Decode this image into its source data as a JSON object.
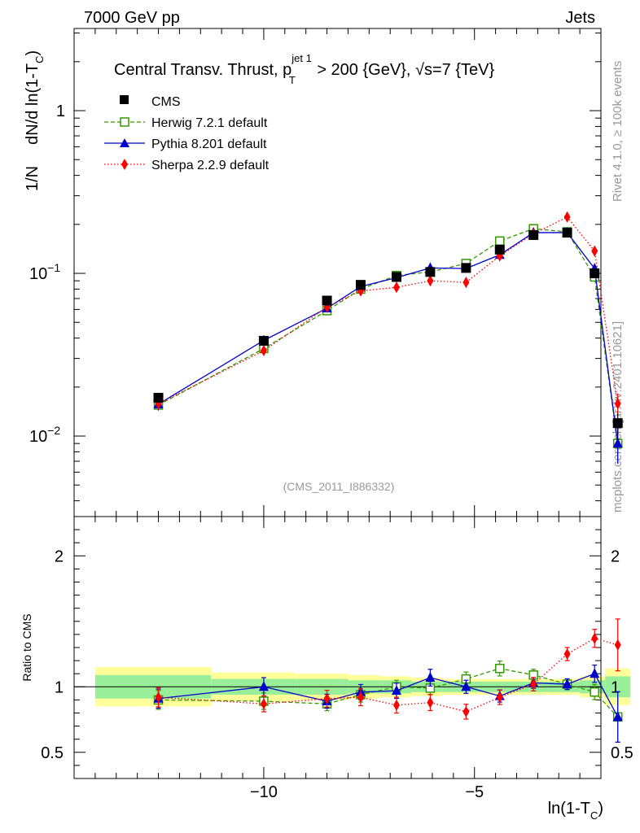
{
  "header": {
    "left": "7000 GeV pp",
    "right": "Jets"
  },
  "side_labels": {
    "rivet": "Rivet 4.1.0, ≥ 100k events",
    "mcplots": "mcplots.cern.ch [arXiv:2401.10621]"
  },
  "chart_data": {
    "type": "line",
    "title": "Central Transv. Thrust, p_T^{jet 1} > 200 {GeV}, √s=7 {TeV}",
    "title_parts": {
      "prefix": "Central Transv. Thrust, p",
      "sup": "jet 1",
      "sub": "T",
      "middle": " > 200 {GeV}, ",
      "sqrt": "√",
      "tail": "s=7 {TeV}"
    },
    "analysis_id": "(CMS_2011_I886332)",
    "xlabel": "ln(1-T_C)",
    "xlabel_parts": {
      "main": "ln(1-T",
      "sub": "C",
      "close": ")"
    },
    "ylabel_parts": {
      "a": "1/N",
      "b": "dN/d ln(1-T",
      "sub": "C",
      "close": ")"
    },
    "ratio_ylabel": "Ratio to CMS",
    "xlim": [
      -14.5,
      -2.0
    ],
    "ylim_log": [
      0.0032,
      3.2
    ],
    "ratio_ylim": [
      0.3,
      2.3
    ],
    "x_ticks": [
      -10,
      -5
    ],
    "x_tick_labels": [
      "−10",
      "−5"
    ],
    "y_tick_labels": [
      {
        "base": "10",
        "exp": "−2",
        "value": 0.01
      },
      {
        "base": "10",
        "exp": "−1",
        "value": 0.1
      },
      {
        "base": "1",
        "exp": "",
        "value": 1
      }
    ],
    "ratio_ticks": [
      0.5,
      1,
      2
    ],
    "ratio_tick_labels": [
      "0.5",
      "1",
      "2"
    ],
    "legend_position": "top-left",
    "x": [
      -12.5,
      -10.0,
      -8.5,
      -7.7,
      -6.85,
      -6.05,
      -5.2,
      -4.4,
      -3.6,
      -2.8,
      -2.15,
      -1.6
    ],
    "bin_edges": [
      -14.0,
      -11.25,
      -9.25,
      -8.0,
      -7.25,
      -6.5,
      -5.75,
      -4.9,
      -4.0,
      -3.25,
      -2.5,
      -1.9,
      -1.3
    ],
    "series": [
      {
        "name": "CMS",
        "style": "data",
        "color": "#000000",
        "values": [
          0.0172,
          0.0385,
          0.068,
          0.085,
          0.095,
          0.102,
          0.108,
          0.14,
          0.172,
          0.178,
          0.1,
          0.012
        ],
        "errors_rel": [
          0.06,
          0.05,
          0.05,
          0.05,
          0.05,
          0.05,
          0.05,
          0.05,
          0.05,
          0.05,
          0.06,
          0.15
        ],
        "ratio": [
          1,
          1,
          1,
          1,
          1,
          1,
          1,
          1,
          1,
          1,
          1,
          1
        ]
      },
      {
        "name": "Herwig 7.2.1 default",
        "style": "dashed",
        "color": "#339900",
        "values": [
          0.0155,
          0.0345,
          0.059,
          0.08,
          0.097,
          0.102,
          0.115,
          0.158,
          0.188,
          0.18,
          0.095,
          0.009
        ],
        "errors_rel": [
          0.08,
          0.07,
          0.06,
          0.06,
          0.05,
          0.05,
          0.05,
          0.05,
          0.04,
          0.04,
          0.06,
          0.25
        ],
        "ratio": [
          0.9,
          0.89,
          0.87,
          0.94,
          1.0,
          0.99,
          1.06,
          1.14,
          1.09,
          1.02,
          0.96,
          0.77
        ]
      },
      {
        "name": "Pythia 8.201 default",
        "style": "solid",
        "color": "#0000cc",
        "values": [
          0.0157,
          0.0387,
          0.061,
          0.083,
          0.094,
          0.108,
          0.107,
          0.13,
          0.178,
          0.178,
          0.107,
          0.009
        ],
        "errors_rel": [
          0.08,
          0.07,
          0.06,
          0.06,
          0.06,
          0.06,
          0.05,
          0.05,
          0.04,
          0.04,
          0.06,
          0.25
        ],
        "ratio": [
          0.91,
          1.0,
          0.89,
          0.96,
          0.97,
          1.07,
          1.0,
          0.93,
          1.03,
          1.02,
          1.1,
          0.77
        ]
      },
      {
        "name": "Sherpa 2.2.9 default",
        "style": "dotted",
        "color": "#ff0000",
        "values": [
          0.0158,
          0.0335,
          0.062,
          0.078,
          0.082,
          0.09,
          0.088,
          0.128,
          0.175,
          0.222,
          0.137,
          0.0158
        ],
        "errors_rel": [
          0.08,
          0.07,
          0.07,
          0.07,
          0.07,
          0.07,
          0.07,
          0.06,
          0.05,
          0.04,
          0.05,
          0.15
        ],
        "ratio": [
          0.92,
          0.87,
          0.91,
          0.92,
          0.86,
          0.88,
          0.81,
          0.92,
          1.02,
          1.25,
          1.37,
          1.32
        ]
      }
    ],
    "bands": {
      "green_halfwidth": [
        0.09,
        0.06,
        0.06,
        0.05,
        0.05,
        0.04,
        0.04,
        0.04,
        0.04,
        0.04,
        0.05,
        0.08
      ],
      "yellow_halfwidth": [
        0.15,
        0.11,
        0.1,
        0.09,
        0.08,
        0.07,
        0.06,
        0.06,
        0.06,
        0.06,
        0.08,
        0.14
      ],
      "green_color": "#99ee99",
      "yellow_color": "#ffff99"
    }
  }
}
